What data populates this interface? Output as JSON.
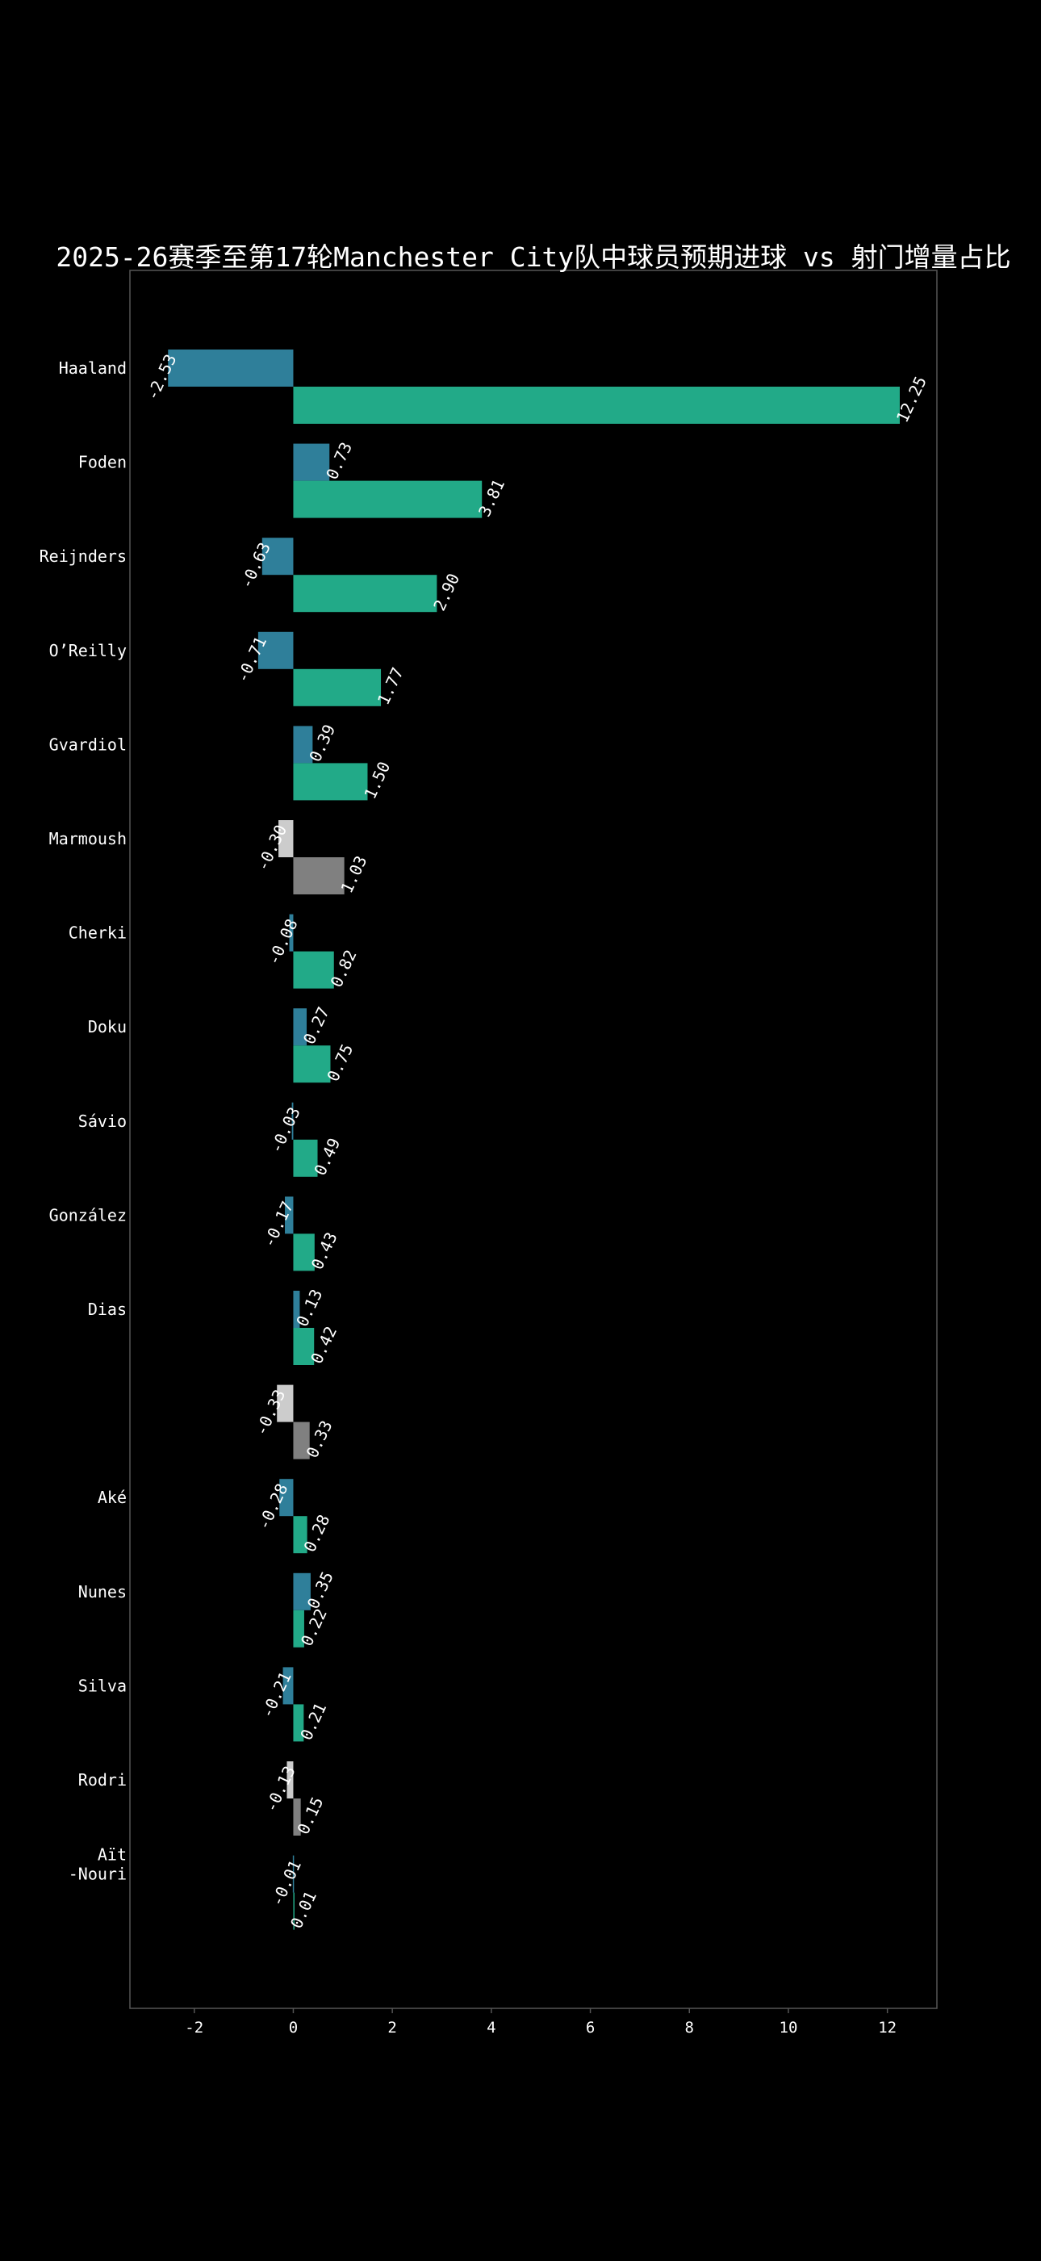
{
  "chart_data": {
    "type": "bar",
    "orientation": "horizontal",
    "title": "2025-26赛季至第17轮Manchester City队中球员预期进球 vs 射门增量占比",
    "xlabel": "",
    "ylabel": "",
    "xlim": [
      -3.3,
      13.0
    ],
    "x_ticks": [
      -2,
      0,
      2,
      4,
      6,
      8,
      10,
      12
    ],
    "grid": false,
    "legend": "none",
    "colors": {
      "series_a": "#2f7f9a",
      "series_b": "#22aa88",
      "series_a_alt": "#cccccc",
      "series_b_alt": "#808080",
      "frame": "#555555",
      "background": "#000000",
      "text": "#ffffff"
    },
    "players": [
      "Haaland",
      "Foden",
      "Reijnders",
      "O’Reilly",
      "Gvardiol",
      "Marmoush",
      "Cherki",
      "Doku",
      "Sávio",
      "González",
      "Dias",
      "",
      "Aké",
      "Nunes",
      "Silva",
      "Rodri",
      "Aït\n-Nouri"
    ],
    "series": [
      {
        "values": [
          -2.53,
          0.73,
          -0.63,
          -0.71,
          0.39,
          -0.3,
          -0.08,
          0.27,
          -0.03,
          -0.17,
          0.13,
          -0.33,
          -0.28,
          0.35,
          -0.21,
          -0.13,
          -0.01
        ],
        "labels": [
          "-2.53",
          "0.73",
          "-0.63",
          "-0.71",
          "0.39",
          "-0.30",
          "-0.08",
          "0.27",
          "-0.03",
          "-0.17",
          "0.13",
          "-0.33",
          "-0.28",
          "0.35",
          "-0.21",
          "-0.13",
          "-0.01"
        ]
      },
      {
        "values": [
          12.25,
          3.81,
          2.9,
          1.77,
          1.5,
          1.03,
          0.82,
          0.75,
          0.49,
          0.43,
          0.42,
          0.33,
          0.28,
          0.22,
          0.21,
          0.15,
          0.01
        ],
        "labels": [
          "12.25",
          "3.81",
          "2.90",
          "1.77",
          "1.50",
          "1.03",
          "0.82",
          "0.75",
          "0.49",
          "0.43",
          "0.42",
          "0.33",
          "0.28",
          "0.22",
          "0.21",
          "0.15",
          "0.01"
        ]
      }
    ],
    "highlight_rows": [
      5,
      11,
      15
    ]
  }
}
